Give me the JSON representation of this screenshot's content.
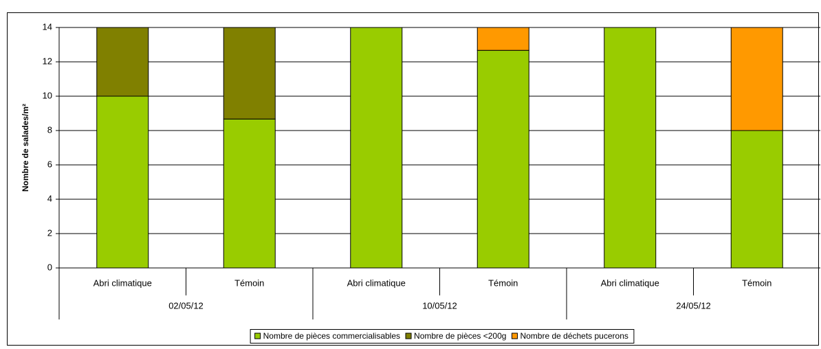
{
  "chart_data": {
    "type": "bar",
    "stacked": true,
    "ylabel": "Nombre de salades/m²",
    "categories": [
      "Abri climatique",
      "Témoin",
      "Abri climatique",
      "Témoin",
      "Abri climatique",
      "Témoin"
    ],
    "groups": [
      "02/05/12",
      "10/05/12",
      "24/05/12"
    ],
    "series": [
      {
        "name": "Nombre de pièces commercialisables",
        "color": "#99cc00",
        "values": [
          10,
          8.67,
          14,
          12.67,
          14,
          8
        ]
      },
      {
        "name": "Nombre de pièces <200g",
        "color": "#808000",
        "values": [
          4,
          5.33,
          0,
          0,
          0,
          0
        ]
      },
      {
        "name": "Nombre de déchets pucerons",
        "color": "#ff9900",
        "values": [
          0,
          0,
          0,
          1.33,
          0,
          6
        ]
      }
    ],
    "ylim": [
      0,
      14
    ],
    "yticks": [
      0,
      2,
      4,
      6,
      8,
      10,
      12,
      14
    ],
    "grid": true,
    "legend": "bottom"
  }
}
